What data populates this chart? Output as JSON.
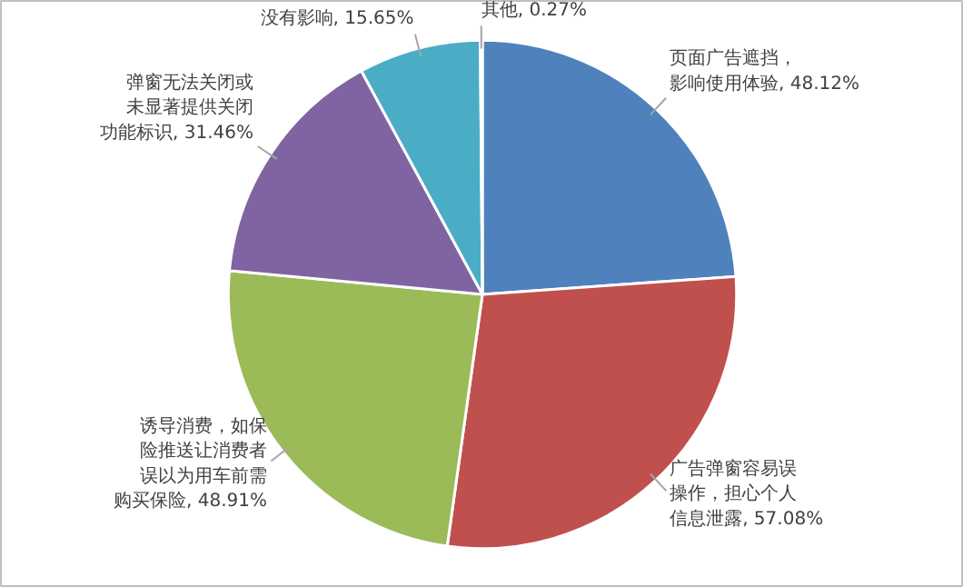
{
  "chart_data": {
    "type": "pie",
    "categories": [
      "页面广告遮挡，影响使用体验",
      "广告弹窗容易误操作，担心个人信息泄露",
      "诱导消费，如保险推送让消费者误以为用车前需购买保险",
      "弹窗无法关闭或未显著提供关闭功能标识",
      "没有影响",
      "其他"
    ],
    "values": [
      48.12,
      57.08,
      48.91,
      31.46,
      15.65,
      0.27
    ],
    "value_labels": [
      "48.12%",
      "57.08%",
      "48.91%",
      "31.46%",
      "15.65%",
      "0.27%"
    ],
    "colors": [
      "#4f81bd",
      "#c0504d",
      "#9bbb59",
      "#8064a2",
      "#4bacc6",
      "#f79646"
    ]
  }
}
